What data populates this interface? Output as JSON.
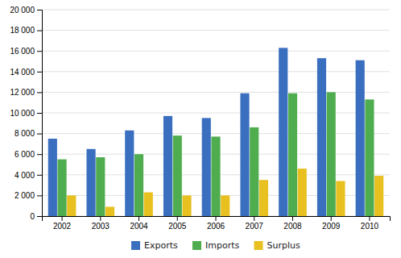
{
  "chart_data": {
    "type": "bar",
    "categories": [
      "2002",
      "2003",
      "2004",
      "2005",
      "2006",
      "2007",
      "2008",
      "2009",
      "2010"
    ],
    "series": [
      {
        "name": "Exports",
        "color": "#3A6EBF",
        "values": [
          7500,
          6500,
          8300,
          9700,
          9500,
          11900,
          16300,
          15300,
          15100
        ]
      },
      {
        "name": "Imports",
        "color": "#4FAD4F",
        "values": [
          5500,
          5700,
          6000,
          7800,
          7700,
          8600,
          11900,
          12000,
          11300
        ]
      },
      {
        "name": "Surplus",
        "color": "#E8C020",
        "values": [
          2000,
          900,
          2300,
          2000,
          2000,
          3500,
          4600,
          3400,
          3900
        ]
      }
    ],
    "ylim": [
      0,
      20000
    ],
    "yticks": [
      0,
      {
        "value": 2000,
        "label": "2 000"
      },
      {
        "value": 4000,
        "label": "4 000"
      },
      {
        "value": 6000,
        "label": "6 000"
      },
      {
        "value": 8000,
        "label": "8 000"
      },
      {
        "value": 10000,
        "label": "10 000"
      },
      {
        "value": 12000,
        "label": "12 000"
      },
      {
        "value": 14000,
        "label": "14 000"
      },
      {
        "value": 16000,
        "label": "16 000"
      },
      {
        "value": 18000,
        "label": "18 000"
      },
      {
        "value": 20000,
        "label": "20 000"
      }
    ],
    "grid": true,
    "legend": "bottom"
  }
}
